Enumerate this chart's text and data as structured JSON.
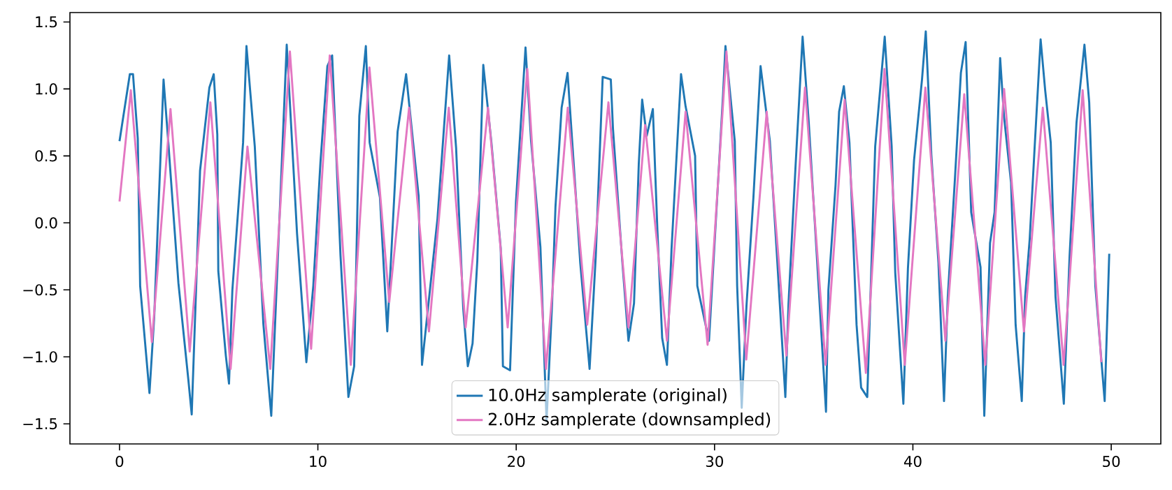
{
  "chart_data": {
    "type": "line",
    "xlim": [
      -2.5,
      52.5
    ],
    "ylim": [
      -1.65,
      1.57
    ],
    "xticks": [
      0,
      10,
      20,
      30,
      40,
      50
    ],
    "yticks": [
      {
        "value": -1.5,
        "label": "−1.5"
      },
      {
        "value": -1.0,
        "label": "−1.0"
      },
      {
        "value": -0.5,
        "label": "−0.5"
      },
      {
        "value": 0.0,
        "label": "0.0"
      },
      {
        "value": 0.5,
        "label": "0.5"
      },
      {
        "value": 1.0,
        "label": "1.0"
      },
      {
        "value": 1.5,
        "label": "1.5"
      }
    ],
    "legend": "bottom",
    "grid": false,
    "marker": "none",
    "line_style": "solid",
    "series": [
      {
        "name": "10.0Hz samplerate (original)",
        "color": "#1f77b4",
        "x": [
          0.0,
          0.52,
          0.68,
          0.92,
          1.04,
          1.51,
          1.75,
          2.22,
          2.46,
          2.97,
          3.47,
          3.64,
          3.87,
          4.06,
          4.53,
          4.75,
          4.93,
          4.98,
          5.36,
          5.52,
          5.69,
          6.23,
          6.4,
          6.82,
          7.25,
          7.65,
          8.43,
          8.95,
          9.42,
          9.77,
          10.13,
          10.48,
          10.72,
          11.14,
          11.54,
          11.83,
          12.09,
          12.42,
          12.61,
          13.13,
          13.5,
          14.02,
          14.45,
          15.08,
          15.25,
          16.03,
          16.62,
          16.97,
          17.33,
          17.56,
          17.8,
          18.04,
          18.34,
          18.75,
          19.22,
          19.33,
          19.69,
          19.99,
          20.47,
          20.75,
          21.22,
          21.53,
          21.81,
          21.98,
          22.29,
          22.59,
          23.0,
          23.23,
          23.7,
          24.01,
          24.36,
          24.77,
          24.88,
          25.35,
          25.66,
          25.94,
          26.18,
          26.35,
          26.58,
          26.89,
          27.12,
          27.36,
          27.6,
          27.83,
          28.31,
          28.54,
          29.02,
          29.13,
          29.72,
          30.43,
          30.55,
          31.02,
          31.14,
          31.37,
          31.61,
          31.96,
          32.32,
          32.79,
          33.14,
          33.57,
          33.73,
          34.09,
          34.44,
          34.75,
          35.15,
          35.62,
          35.74,
          36.1,
          36.28,
          36.52,
          36.8,
          37.16,
          37.39,
          37.7,
          38.1,
          38.58,
          38.93,
          39.11,
          39.52,
          39.75,
          40.06,
          40.46,
          40.65,
          40.93,
          41.29,
          41.57,
          41.76,
          42.12,
          42.42,
          42.66,
          42.94,
          43.41,
          43.6,
          43.89,
          44.12,
          44.4,
          44.59,
          44.95,
          45.18,
          45.49,
          45.66,
          45.89,
          46.13,
          46.44,
          46.67,
          46.95,
          47.19,
          47.61,
          47.9,
          48.25,
          48.65,
          48.89,
          49.2,
          49.67,
          49.84,
          49.9
        ],
        "values": [
          0.61,
          1.11,
          1.11,
          0.63,
          -0.47,
          -1.27,
          -0.7,
          1.07,
          0.6,
          -0.45,
          -1.17,
          -1.43,
          -0.45,
          0.39,
          1.01,
          1.11,
          0.66,
          -0.36,
          -0.99,
          -1.2,
          -0.5,
          0.6,
          1.32,
          0.57,
          -0.75,
          -1.44,
          1.33,
          -0.08,
          -1.04,
          -0.47,
          0.45,
          1.17,
          1.25,
          -0.24,
          -1.3,
          -1.07,
          0.8,
          1.32,
          0.6,
          0.19,
          -0.81,
          0.68,
          1.11,
          0.2,
          -1.06,
          0.03,
          1.25,
          0.56,
          -0.64,
          -1.07,
          -0.9,
          -0.28,
          1.18,
          0.6,
          -0.19,
          -1.07,
          -1.1,
          0.16,
          1.31,
          0.61,
          -0.18,
          -1.48,
          -0.6,
          0.12,
          0.86,
          1.12,
          0.22,
          -0.3,
          -1.09,
          -0.25,
          1.09,
          1.07,
          0.7,
          -0.29,
          -0.88,
          -0.6,
          0.44,
          0.92,
          0.65,
          0.85,
          -0.06,
          -0.86,
          -1.06,
          -0.2,
          1.11,
          0.87,
          0.5,
          -0.47,
          -0.88,
          0.96,
          1.32,
          0.61,
          -0.47,
          -1.38,
          -0.62,
          0.19,
          1.17,
          0.61,
          -0.23,
          -1.3,
          -0.6,
          0.44,
          1.39,
          0.75,
          -0.23,
          -1.41,
          -0.5,
          0.28,
          0.83,
          1.02,
          0.6,
          -0.76,
          -1.23,
          -1.3,
          0.57,
          1.39,
          0.57,
          -0.37,
          -1.35,
          -0.34,
          0.47,
          1.07,
          1.43,
          0.51,
          -0.3,
          -1.33,
          -0.55,
          0.33,
          1.12,
          1.35,
          0.08,
          -0.33,
          -1.44,
          -0.15,
          0.08,
          1.23,
          0.8,
          0.3,
          -0.76,
          -1.33,
          -0.55,
          -0.12,
          0.54,
          1.37,
          0.99,
          0.6,
          -0.55,
          -1.35,
          -0.25,
          0.75,
          1.33,
          0.9,
          -0.47,
          -1.33,
          -0.52,
          -0.23
        ]
      },
      {
        "name": "2.0Hz samplerate (downsampled)",
        "color": "#e377c2",
        "x": [
          0.0,
          0.57,
          1.63,
          2.57,
          3.54,
          4.58,
          5.6,
          6.45,
          7.6,
          8.59,
          9.66,
          10.6,
          11.66,
          12.6,
          13.6,
          14.6,
          15.6,
          16.6,
          17.45,
          18.58,
          19.57,
          20.56,
          21.5,
          22.6,
          23.58,
          24.65,
          25.66,
          26.5,
          27.6,
          28.54,
          29.65,
          30.6,
          31.6,
          32.63,
          33.62,
          34.56,
          35.6,
          36.56,
          37.63,
          38.57,
          39.59,
          40.63,
          41.64,
          42.59,
          43.65,
          44.6,
          45.6,
          46.55,
          47.6,
          48.56,
          49.5
        ],
        "values": [
          0.16,
          0.99,
          -0.89,
          0.85,
          -0.96,
          0.9,
          -1.09,
          0.57,
          -1.09,
          1.28,
          -0.94,
          1.25,
          -1.06,
          1.16,
          -0.59,
          0.86,
          -0.81,
          0.86,
          -0.78,
          0.86,
          -0.78,
          1.15,
          -1.09,
          0.86,
          -0.76,
          0.9,
          -0.78,
          0.73,
          -0.88,
          0.83,
          -0.91,
          1.28,
          -1.02,
          0.83,
          -0.99,
          1.01,
          -1.06,
          0.92,
          -1.12,
          1.15,
          -1.06,
          1.01,
          -0.88,
          0.96,
          -1.06,
          1.0,
          -0.81,
          0.86,
          -1.06,
          0.99,
          -1.04
        ]
      }
    ]
  }
}
